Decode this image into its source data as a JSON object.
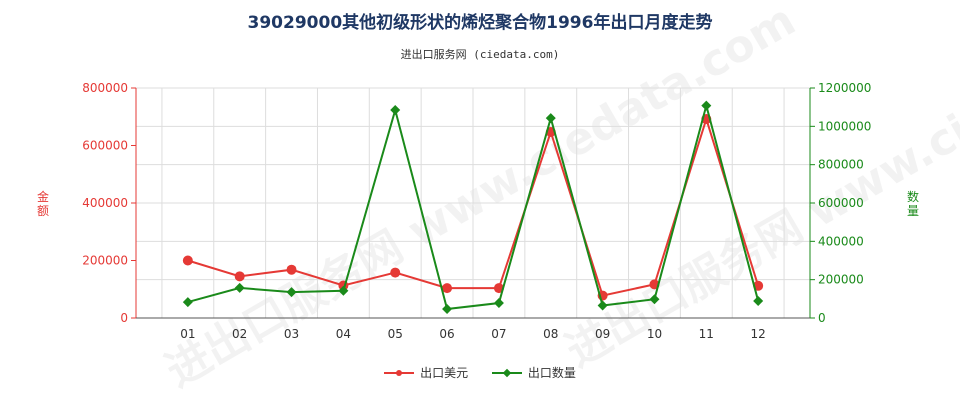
{
  "title": "39029000其他初级形状的烯烃聚合物1996年出口月度走势",
  "subtitle": "进出口服务网 (ciedata.com)",
  "watermark": "进出口服务网 www.ciedata.com",
  "chart_data": {
    "type": "line",
    "categories": [
      "01",
      "02",
      "03",
      "04",
      "05",
      "06",
      "07",
      "08",
      "09",
      "10",
      "11",
      "12"
    ],
    "y_left": {
      "label": "金额",
      "ylim": [
        0,
        800000
      ],
      "ticks": [
        "0",
        "200000",
        "400000",
        "600000",
        "800000"
      ],
      "color": "#e53935"
    },
    "y_right": {
      "label": "数量",
      "ylim": [
        0,
        1200000
      ],
      "ticks": [
        "0",
        "200000",
        "400000",
        "600000",
        "800000",
        "1000000",
        "1200000"
      ],
      "color": "#1a8a1a"
    },
    "series": [
      {
        "name": "出口美元",
        "axis": "left",
        "color": "#e53935",
        "values": [
          200000,
          145000,
          168000,
          113000,
          158000,
          104000,
          104000,
          647000,
          78000,
          117000,
          692000,
          112000
        ]
      },
      {
        "name": "出口数量",
        "axis": "right",
        "color": "#1a8a1a",
        "values": [
          83000,
          157000,
          135000,
          142000,
          1085000,
          47000,
          78000,
          1043000,
          65000,
          98000,
          1108000,
          89000
        ]
      }
    ],
    "grid": true,
    "legend": "bottom"
  }
}
